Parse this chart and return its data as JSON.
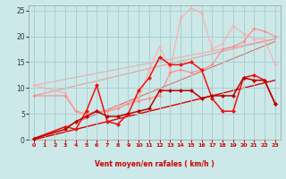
{
  "bg_color": "#cce8e8",
  "grid_color": "#aad0d0",
  "xlabel": "Vent moyen/en rafales ( km/h )",
  "xlim": [
    -0.5,
    23.5
  ],
  "ylim": [
    0,
    26
  ],
  "yticks": [
    0,
    5,
    10,
    15,
    20,
    25
  ],
  "xticks": [
    0,
    1,
    2,
    3,
    4,
    5,
    6,
    7,
    8,
    9,
    10,
    11,
    12,
    13,
    14,
    15,
    16,
    17,
    18,
    19,
    20,
    21,
    22,
    23
  ],
  "line_diag1": {
    "x": [
      0,
      23
    ],
    "y": [
      0,
      11.5
    ],
    "color": "#dd0000",
    "lw": 1.0,
    "alpha": 1.0
  },
  "line_diag2": {
    "x": [
      0,
      23
    ],
    "y": [
      0,
      19.0
    ],
    "color": "#dd0000",
    "lw": 0.8,
    "alpha": 0.5
  },
  "line_diag3": {
    "x": [
      0,
      23
    ],
    "y": [
      8.5,
      19.5
    ],
    "color": "#ee8888",
    "lw": 0.9,
    "alpha": 0.7
  },
  "line_diag4": {
    "x": [
      0,
      23
    ],
    "y": [
      10.5,
      19.5
    ],
    "color": "#ee8888",
    "lw": 0.9,
    "alpha": 0.5
  },
  "line_dark_red": {
    "x": [
      0,
      3,
      4,
      5,
      6,
      7,
      8,
      9,
      10,
      11,
      12,
      13,
      14,
      15,
      16,
      17,
      18,
      19,
      20,
      21,
      22,
      23
    ],
    "y": [
      0.2,
      2.0,
      3.5,
      4.5,
      5.5,
      4.5,
      4.5,
      5.0,
      5.5,
      6.0,
      9.5,
      9.5,
      9.5,
      9.5,
      8.0,
      8.5,
      8.5,
      8.5,
      12.0,
      11.5,
      11.5,
      7.0
    ],
    "color": "#bb0000",
    "lw": 1.1,
    "ms": 2.5,
    "alpha": 1.0
  },
  "line_bright_red": {
    "x": [
      0,
      3,
      4,
      5,
      6,
      7,
      8,
      9,
      10,
      11,
      12,
      13,
      14,
      15,
      16,
      17,
      18,
      19,
      20,
      21,
      22,
      23
    ],
    "y": [
      0.2,
      2.5,
      2.0,
      5.5,
      10.5,
      3.5,
      3.0,
      5.0,
      9.5,
      12.0,
      16.0,
      14.5,
      14.5,
      15.0,
      13.5,
      8.0,
      5.5,
      5.5,
      12.0,
      12.5,
      11.5,
      7.0
    ],
    "color": "#ee1111",
    "lw": 1.1,
    "ms": 2.5,
    "alpha": 1.0
  },
  "line_pink1": {
    "x": [
      0,
      3,
      4,
      5,
      6,
      7,
      8,
      9,
      10,
      11,
      12,
      13,
      14,
      15,
      16,
      17,
      18,
      19,
      20,
      21,
      22,
      23
    ],
    "y": [
      8.5,
      8.5,
      5.5,
      5.0,
      5.5,
      5.5,
      6.0,
      7.0,
      7.5,
      8.0,
      8.5,
      13.0,
      13.5,
      13.0,
      13.5,
      14.5,
      17.5,
      18.0,
      19.0,
      21.5,
      21.0,
      20.0
    ],
    "color": "#ff8888",
    "lw": 0.9,
    "ms": 2.0,
    "alpha": 0.9
  },
  "line_pink2": {
    "x": [
      0,
      3,
      4,
      5,
      6,
      7,
      8,
      9,
      10,
      11,
      12,
      13,
      14,
      15,
      16,
      17,
      18,
      19,
      20,
      21,
      22,
      23
    ],
    "y": [
      10.5,
      9.0,
      5.5,
      4.5,
      5.5,
      5.5,
      6.5,
      7.0,
      8.0,
      13.5,
      18.0,
      13.5,
      23.5,
      25.5,
      24.5,
      17.5,
      18.5,
      22.0,
      20.5,
      19.5,
      19.5,
      14.5
    ],
    "color": "#ffaaaa",
    "lw": 0.9,
    "ms": 2.0,
    "alpha": 0.85
  },
  "arrow_chars": [
    "k",
    "k",
    "k",
    "k",
    "k",
    "k",
    "k",
    "k",
    "k",
    "k",
    "k",
    "k",
    "k",
    "k",
    "k",
    "k",
    "k",
    "k",
    "k",
    "k",
    "k",
    "k",
    "k",
    "k"
  ]
}
